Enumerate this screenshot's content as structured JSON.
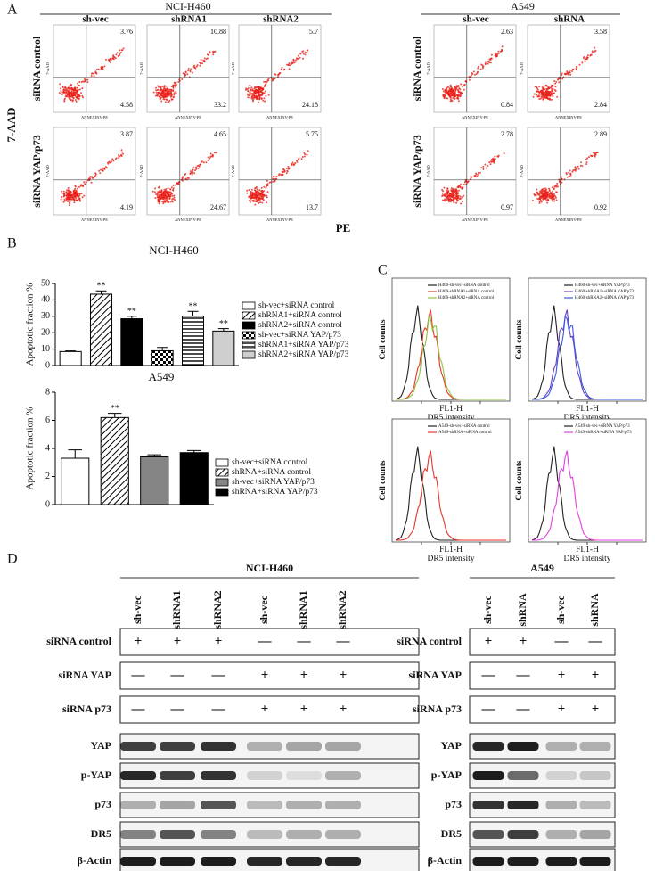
{
  "panel_a": {
    "label": "A",
    "y_label": "7-AAD",
    "x_label": "PE",
    "axis_x": "ANNEXINV-PE",
    "axis_y": "7-AAD",
    "row_labels": [
      "siRNA control",
      "siRNA YAP/p73"
    ],
    "groups": [
      {
        "name": "NCI-H460",
        "columns": [
          "sh-vec",
          "shRNA1",
          "shRNA2"
        ],
        "values": [
          [
            [
              3.76,
              4.58
            ],
            [
              10.88,
              33.2
            ],
            [
              5.7,
              24.18
            ]
          ],
          [
            [
              3.87,
              4.19
            ],
            [
              4.65,
              24.67
            ],
            [
              5.75,
              13.7
            ]
          ]
        ]
      },
      {
        "name": "A549",
        "columns": [
          "sh-vec",
          "shRNA"
        ],
        "values": [
          [
            [
              2.63,
              0.84
            ],
            [
              3.58,
              2.84
            ]
          ],
          [
            [
              2.78,
              0.97
            ],
            [
              2.89,
              0.92
            ]
          ]
        ]
      }
    ]
  },
  "panel_b": {
    "label": "B"
  },
  "chart_data": [
    {
      "type": "bar",
      "title": "NCI-H460",
      "y_label": "Apoptotic fraction %",
      "categories": [
        "sh-vec+siRNA control",
        "shRNA1+siRNA control",
        "shRNA2+siRNA control",
        "sh-vec+siRNA YAP/p73",
        "shRNA1+siRNA YAP/p73",
        "shRNA2+siRNA YAP/p73"
      ],
      "values": [
        8.5,
        43.5,
        28.5,
        9,
        30,
        21
      ],
      "errors": [
        0.4,
        2,
        1.5,
        2,
        3,
        1.5
      ],
      "markers": [
        null,
        "**",
        "**",
        null,
        "**",
        "**"
      ],
      "fills": [
        "white",
        "hatch",
        "black",
        "checker",
        "hlines",
        "#cfcfcf"
      ],
      "ylim": [
        0,
        50
      ],
      "yticks": [
        0,
        10,
        20,
        30,
        40,
        50
      ]
    },
    {
      "type": "bar",
      "title": "A549",
      "y_label": "Apoptotic fraction %",
      "categories": [
        "sh-vec+siRNA control",
        "shRNA+siRNA control",
        "sh-vec+siRNA YAP/p73",
        "shRNA+siRNA YAP/p73"
      ],
      "values": [
        3.3,
        6.2,
        3.4,
        3.7
      ],
      "errors": [
        0.6,
        0.3,
        0.15,
        0.15
      ],
      "markers": [
        null,
        "**",
        null,
        null
      ],
      "fills": [
        "white",
        "hatch",
        "#858585",
        "black"
      ],
      "ylim": [
        0,
        8
      ],
      "yticks": [
        0,
        2,
        4,
        6,
        8
      ]
    }
  ],
  "panel_c": {
    "label": "C",
    "y_label": "Cell counts",
    "x_label": "FL1-H",
    "x_sublabel": "DR5 intensity",
    "plots": [
      {
        "legend": [
          {
            "name": "H460-sh-vec+siRNA control",
            "color": "#222222"
          },
          {
            "name": "H460-shRNA1+siRNA control",
            "color": "#e8352c"
          },
          {
            "name": "H460-shRNA2+siRNA control",
            "color": "#8dc63f"
          }
        ]
      },
      {
        "legend": [
          {
            "name": "H460-sh-vec+siRNA YAP/p73",
            "color": "#222222"
          },
          {
            "name": "H460-shRNA1+siRNA YAP/p73",
            "color": "#6a3fc0"
          },
          {
            "name": "H460-shRNA2+siRNA YAP/p73",
            "color": "#3a5ae0"
          }
        ]
      },
      {
        "legend": [
          {
            "name": "A549-sh-vec+siRNA control",
            "color": "#222222"
          },
          {
            "name": "A549-shRNA+siRNA control",
            "color": "#e8352c"
          }
        ]
      },
      {
        "legend": [
          {
            "name": "A549-sh-vec+siRNA YAP/p73",
            "color": "#222222"
          },
          {
            "name": "A549-shRNA+siRNA YAP/p73",
            "color": "#e040e0"
          }
        ]
      }
    ]
  },
  "panel_d": {
    "label": "D",
    "groups": [
      {
        "name": "NCI-H460",
        "lanes": [
          "sh-vec",
          "shRNA1",
          "shRNA2",
          "sh-vec",
          "shRNA1",
          "shRNA2"
        ],
        "conditions": [
          {
            "name": "siRNA control",
            "marks": [
              "+",
              "+",
              "+",
              "—",
              "—",
              "—"
            ]
          },
          {
            "name": "siRNA YAP",
            "marks": [
              "—",
              "—",
              "—",
              "+",
              "+",
              "+"
            ]
          },
          {
            "name": "siRNA p73",
            "marks": [
              "—",
              "—",
              "—",
              "+",
              "+",
              "+"
            ]
          }
        ],
        "blots": [
          "YAP",
          "p-YAP",
          "p73",
          "DR5",
          "β-Actin"
        ]
      },
      {
        "name": "A549",
        "lanes": [
          "sh-vec",
          "shRNA",
          "sh-vec",
          "shRNA"
        ],
        "conditions": [
          {
            "name": "siRNA control",
            "marks": [
              "+",
              "+",
              "—",
              "—"
            ]
          },
          {
            "name": "siRNA YAP",
            "marks": [
              "—",
              "—",
              "+",
              "+"
            ]
          },
          {
            "name": "siRNA p73",
            "marks": [
              "—",
              "—",
              "+",
              "+"
            ]
          }
        ],
        "blots": [
          "YAP",
          "p-YAP",
          "p73",
          "DR5",
          "β-Actin"
        ]
      }
    ]
  }
}
